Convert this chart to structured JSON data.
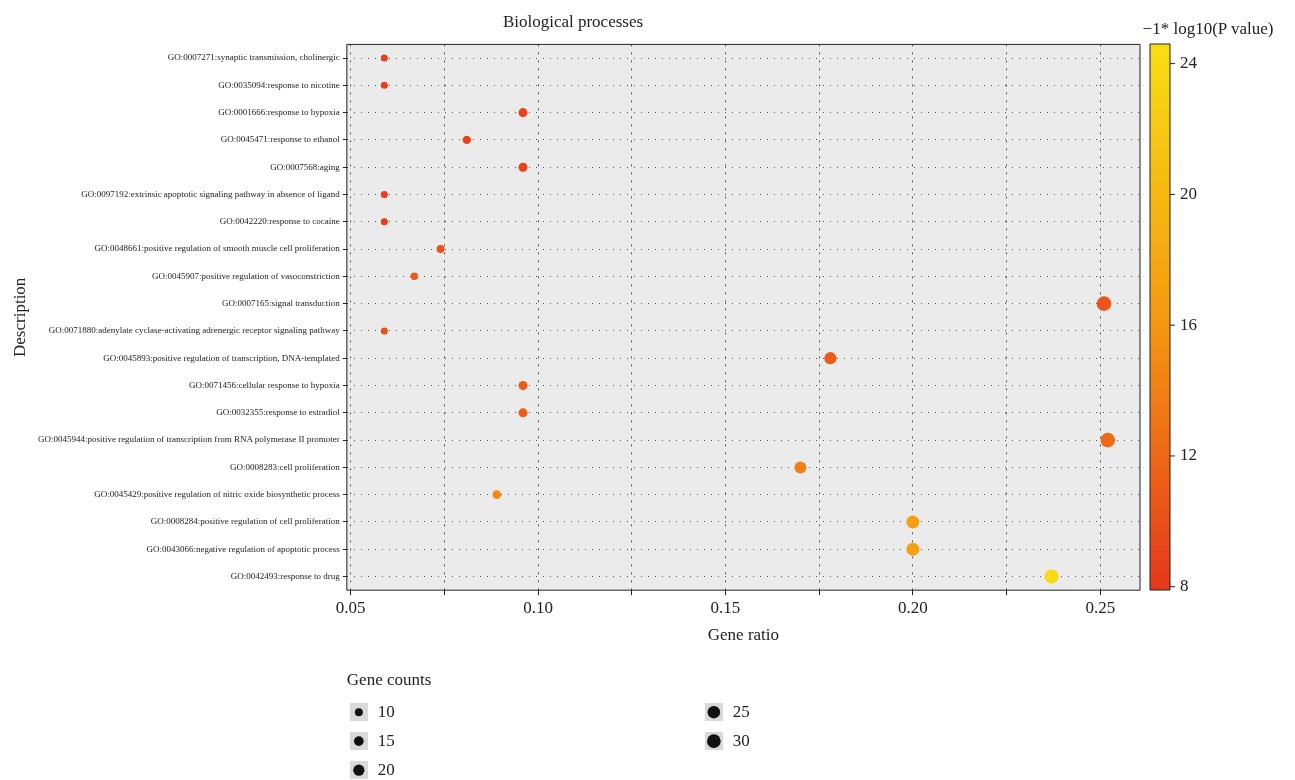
{
  "chart_data": {
    "type": "bubble",
    "title": "Biological processes",
    "xlabel": "Gene ratio",
    "ylabel": "Description",
    "clabel": "−1* log10(P value)",
    "legend_title": "Gene counts",
    "orientation": "horizontal",
    "categories": [
      "GO:0007271:synaptic transmission, cholinergic",
      "GO:0035094:response to nicotine",
      "GO:0001666:response to hypoxia",
      "GO:0045471:response to ethanol",
      "GO:0007568:aging",
      "GO:0097192:extrinsic apoptotic signaling pathway in absence of ligand",
      "GO:0042220:response to cocaine",
      "GO:0048661:positive regulation of smooth muscle cell proliferation",
      "GO:0045907:positive regulation of vasoconstriction",
      "GO:0007165:signal transduction",
      "GO:0071880:adenylate cyclase-activating adrenergic receptor signaling pathway",
      "GO:0045893:positive regulation of transcription, DNA-templated",
      "GO:0071456:cellular response to hypoxia",
      "GO:0032355:response to estradiol",
      "GO:0045944:positive regulation of transcription from RNA polymerase II promoter",
      "GO:0008283:cell proliferation",
      "GO:0045429:positive regulation of nitric oxide biosynthetic process",
      "GO:0008284:positive regulation of cell proliferation",
      "GO:0043066:negative regulation of apoptotic process",
      "GO:0042493:response to drug"
    ],
    "values": [
      0.059,
      0.059,
      0.096,
      0.081,
      0.096,
      0.059,
      0.059,
      0.074,
      0.067,
      0.251,
      0.059,
      0.178,
      0.096,
      0.096,
      0.252,
      0.17,
      0.089,
      0.2,
      0.2,
      0.237
    ],
    "sizes": [
      8,
      8,
      13,
      11,
      13,
      8,
      8,
      10,
      9,
      34,
      8,
      24,
      13,
      13,
      34,
      23,
      12,
      27,
      27,
      32
    ],
    "cvalues": [
      8.5,
      8.5,
      9,
      9,
      9,
      8.5,
      8.5,
      10,
      11,
      10.5,
      10,
      11,
      11,
      11,
      12,
      14,
      15,
      17,
      17,
      24
    ],
    "size_legend": [
      10,
      15,
      20,
      25,
      30
    ],
    "clim": [
      7.9,
      24.6
    ],
    "cticks": [
      8,
      12,
      16,
      20,
      24
    ],
    "xlim": [
      0.049,
      0.2606
    ],
    "xticks": [
      0.05,
      {
        "value": 0.075,
        "label": null
      },
      {
        "value": 0.1,
        "label": "0.10"
      },
      {
        "value": 0.125,
        "label": null
      },
      0.15,
      {
        "value": 0.175,
        "label": null
      },
      {
        "value": 0.2,
        "label": "0.20"
      },
      {
        "value": 0.225,
        "label": null
      },
      0.25
    ],
    "grid": true,
    "marker": "circle"
  }
}
